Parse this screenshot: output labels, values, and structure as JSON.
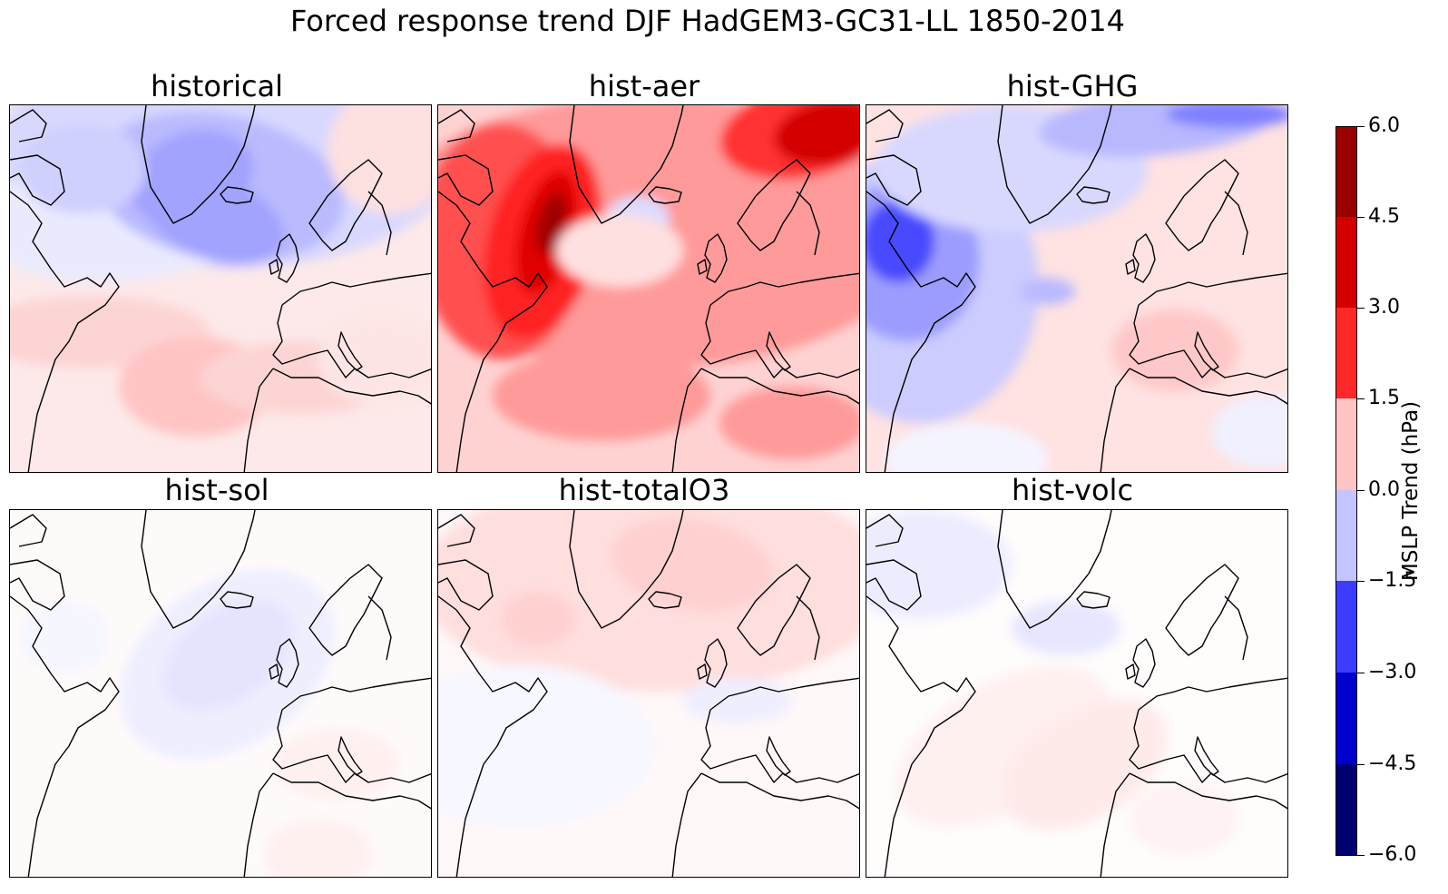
{
  "title": "Forced response trend DJF HadGEM3-GC31-LL 1850-2014",
  "chart_data": {
    "type": "contour_map_panels",
    "variable": "MSLP trend",
    "units": "hPa",
    "region": "North Atlantic / Europe",
    "colormap": "seismic",
    "colorbar": {
      "label": "MSLP Trend (hPa)",
      "levels": [
        -6.0,
        -4.5,
        -3.0,
        -1.5,
        0.0,
        1.5,
        3.0,
        4.5,
        6.0
      ],
      "tick_labels": [
        "6.0",
        "4.5",
        "3.0",
        "1.5",
        "0.0",
        "−1.5",
        "−3.0",
        "−4.5",
        "−6.0"
      ]
    },
    "panels": [
      {
        "title": "historical",
        "approx_range": [
          -1.2,
          1.0
        ]
      },
      {
        "title": "hist-aer",
        "approx_range": [
          -0.5,
          5.5
        ]
      },
      {
        "title": "hist-GHG",
        "approx_range": [
          -2.8,
          1.2
        ]
      },
      {
        "title": "hist-sol",
        "approx_range": [
          -0.6,
          0.3
        ]
      },
      {
        "title": "hist-totalO3",
        "approx_range": [
          -0.4,
          0.9
        ]
      },
      {
        "title": "hist-volc",
        "approx_range": [
          -0.5,
          0.4
        ]
      }
    ]
  },
  "colors": {
    "lvl_pos_1": "#ffcccc",
    "lvl_pos_2": "#ff8c8c",
    "lvl_pos_3": "#ff2020",
    "lvl_pos_4": "#d40000",
    "lvl_pos_5": "#990000",
    "lvl_neg_1": "#ccccff",
    "lvl_neg_2": "#8c8cff",
    "lvl_neg_3": "#3030ff",
    "lvl_neg_4": "#0000c8",
    "lvl_neg_5": "#000070",
    "coastline": "#000000"
  }
}
